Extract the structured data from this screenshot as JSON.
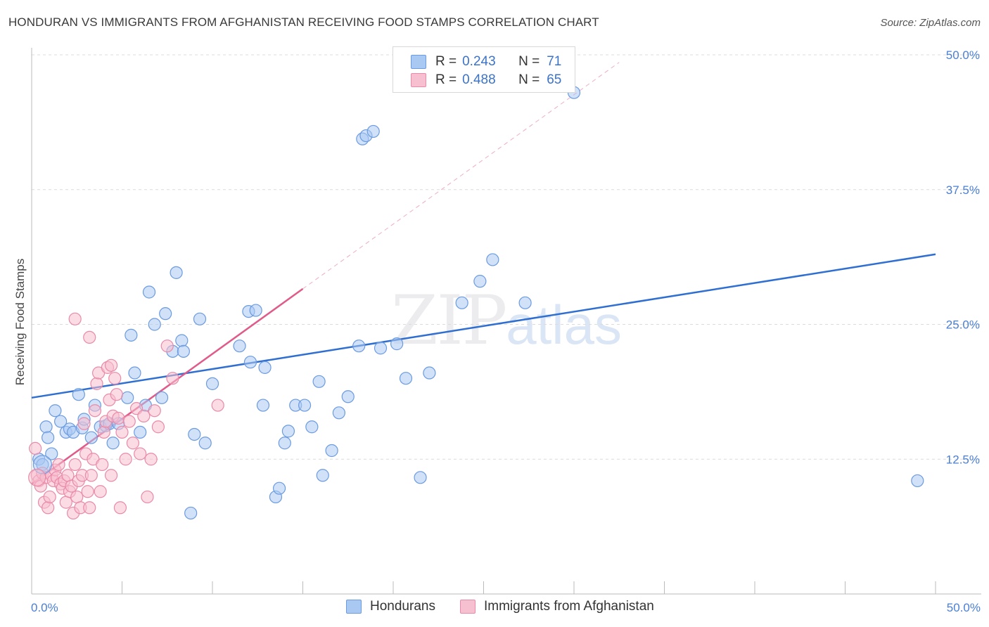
{
  "title": "HONDURAN VS IMMIGRANTS FROM AFGHANISTAN RECEIVING FOOD STAMPS CORRELATION CHART",
  "source": "Source: ZipAtlas.com",
  "watermark": {
    "zip": "ZIP",
    "atlas": "atlas"
  },
  "legend": {
    "r_label": "R =",
    "n_label": "N =",
    "rows": [
      {
        "r": "0.243",
        "n": "71",
        "color": "#a9c8f2",
        "border": "#6b9be0"
      },
      {
        "r": "0.488",
        "n": "65",
        "color": "#f7c0d0",
        "border": "#e98aa8"
      }
    ]
  },
  "bottom_legend": [
    {
      "label": "Hondurans",
      "color": "#a9c8f2",
      "border": "#6b9be0"
    },
    {
      "label": "Immigrants from Afghanistan",
      "color": "#f7c0d0",
      "border": "#e98aa8"
    }
  ],
  "chart_data": {
    "type": "scatter",
    "title": "HONDURAN VS IMMIGRANTS FROM AFGHANISTAN RECEIVING FOOD STAMPS CORRELATION CHART",
    "xlabel": "",
    "ylabel": "Receiving Food Stamps",
    "xlim": [
      0,
      50
    ],
    "ylim": [
      0,
      50
    ],
    "x_tick_labels": [
      "0.0%",
      "50.0%"
    ],
    "y_ticks": [
      12.5,
      25.0,
      37.5,
      50.0
    ],
    "y_tick_labels": [
      "12.5%",
      "25.0%",
      "37.5%",
      "50.0%"
    ],
    "grid": true,
    "series": [
      {
        "name": "Hondurans",
        "color": "#6b9be0",
        "fill": "#a9c8f2",
        "trend": {
          "x0": 0,
          "y0": 18.2,
          "x1": 50,
          "y1": 31.5,
          "color": "#2f6fd1"
        },
        "points": [
          [
            0.4,
            12.5
          ],
          [
            0.6,
            12.0
          ],
          [
            0.8,
            15.5
          ],
          [
            0.9,
            14.5
          ],
          [
            1.1,
            13.0
          ],
          [
            1.3,
            17.0
          ],
          [
            1.6,
            16.0
          ],
          [
            1.9,
            15.0
          ],
          [
            2.1,
            15.3
          ],
          [
            2.3,
            15.0
          ],
          [
            2.6,
            18.5
          ],
          [
            2.8,
            15.4
          ],
          [
            2.9,
            16.2
          ],
          [
            3.3,
            14.5
          ],
          [
            3.5,
            17.5
          ],
          [
            3.8,
            15.5
          ],
          [
            4.1,
            15.6
          ],
          [
            4.3,
            15.8
          ],
          [
            4.5,
            14.0
          ],
          [
            4.8,
            15.8
          ],
          [
            5.3,
            18.2
          ],
          [
            5.5,
            24.0
          ],
          [
            5.7,
            20.5
          ],
          [
            6.0,
            15.0
          ],
          [
            6.3,
            17.5
          ],
          [
            6.5,
            28.0
          ],
          [
            6.8,
            25.0
          ],
          [
            7.2,
            18.2
          ],
          [
            7.4,
            26.0
          ],
          [
            7.8,
            22.5
          ],
          [
            8.0,
            29.8
          ],
          [
            8.3,
            23.5
          ],
          [
            8.4,
            22.5
          ],
          [
            8.8,
            7.5
          ],
          [
            9.0,
            14.8
          ],
          [
            9.3,
            25.5
          ],
          [
            9.6,
            14.0
          ],
          [
            10.0,
            19.5
          ],
          [
            11.5,
            23.0
          ],
          [
            12.0,
            26.2
          ],
          [
            12.1,
            21.5
          ],
          [
            12.4,
            26.3
          ],
          [
            12.8,
            17.5
          ],
          [
            12.9,
            21.0
          ],
          [
            13.5,
            9.0
          ],
          [
            13.7,
            9.8
          ],
          [
            14.0,
            14.0
          ],
          [
            14.2,
            15.1
          ],
          [
            14.6,
            17.5
          ],
          [
            15.1,
            17.5
          ],
          [
            15.5,
            15.5
          ],
          [
            15.9,
            19.7
          ],
          [
            16.1,
            11.0
          ],
          [
            16.6,
            13.3
          ],
          [
            17.0,
            16.8
          ],
          [
            17.5,
            18.3
          ],
          [
            18.1,
            23.0
          ],
          [
            18.3,
            42.2
          ],
          [
            18.5,
            42.5
          ],
          [
            18.9,
            42.9
          ],
          [
            19.3,
            22.8
          ],
          [
            20.2,
            23.2
          ],
          [
            20.7,
            20.0
          ],
          [
            21.5,
            10.8
          ],
          [
            22.0,
            20.5
          ],
          [
            23.8,
            27.0
          ],
          [
            24.8,
            29.0
          ],
          [
            25.5,
            31.0
          ],
          [
            27.3,
            27.0
          ],
          [
            30.0,
            46.5
          ],
          [
            49.0,
            10.5
          ]
        ]
      },
      {
        "name": "Immigrants from Afghanistan",
        "color": "#e98aa8",
        "fill": "#f7c0d0",
        "trend": {
          "x0": 0,
          "y0": 10.2,
          "x1": 15.0,
          "y1": 28.3,
          "color": "#e05a8a",
          "dash_to": {
            "x": 32.5,
            "y": 49.3
          }
        },
        "points": [
          [
            0.2,
            13.5
          ],
          [
            0.3,
            11.0
          ],
          [
            0.4,
            10.5
          ],
          [
            0.5,
            10.0
          ],
          [
            0.6,
            11.2
          ],
          [
            0.7,
            8.5
          ],
          [
            0.8,
            10.8
          ],
          [
            0.9,
            8.0
          ],
          [
            1.0,
            9.0
          ],
          [
            1.1,
            11.0
          ],
          [
            1.2,
            10.5
          ],
          [
            1.3,
            11.5
          ],
          [
            1.4,
            10.8
          ],
          [
            1.5,
            12.0
          ],
          [
            1.6,
            10.2
          ],
          [
            1.7,
            9.8
          ],
          [
            1.8,
            10.5
          ],
          [
            1.9,
            8.5
          ],
          [
            2.0,
            11.0
          ],
          [
            2.1,
            9.5
          ],
          [
            2.2,
            10.0
          ],
          [
            2.3,
            7.5
          ],
          [
            2.4,
            12.0
          ],
          [
            2.5,
            9.0
          ],
          [
            2.6,
            10.5
          ],
          [
            2.7,
            8.0
          ],
          [
            2.8,
            11.0
          ],
          [
            2.9,
            15.8
          ],
          [
            3.0,
            13.0
          ],
          [
            3.1,
            9.5
          ],
          [
            3.2,
            8.0
          ],
          [
            3.3,
            11.0
          ],
          [
            3.4,
            12.5
          ],
          [
            3.5,
            17.0
          ],
          [
            3.6,
            19.5
          ],
          [
            3.7,
            20.5
          ],
          [
            3.8,
            9.5
          ],
          [
            3.9,
            12.0
          ],
          [
            4.0,
            15.0
          ],
          [
            4.1,
            16.0
          ],
          [
            4.2,
            21.0
          ],
          [
            4.3,
            18.0
          ],
          [
            4.4,
            11.0
          ],
          [
            4.5,
            16.5
          ],
          [
            4.6,
            20.0
          ],
          [
            4.7,
            18.5
          ],
          [
            4.8,
            16.3
          ],
          [
            4.9,
            8.0
          ],
          [
            5.0,
            15.0
          ],
          [
            5.2,
            12.5
          ],
          [
            5.4,
            16.0
          ],
          [
            5.6,
            14.0
          ],
          [
            5.8,
            17.2
          ],
          [
            6.0,
            13.0
          ],
          [
            6.2,
            16.5
          ],
          [
            6.4,
            9.0
          ],
          [
            6.6,
            12.5
          ],
          [
            6.8,
            17.0
          ],
          [
            7.0,
            15.5
          ],
          [
            7.5,
            23.0
          ],
          [
            7.8,
            20.0
          ],
          [
            2.4,
            25.5
          ],
          [
            3.2,
            23.8
          ],
          [
            4.4,
            21.2
          ],
          [
            10.3,
            17.5
          ]
        ]
      }
    ]
  }
}
